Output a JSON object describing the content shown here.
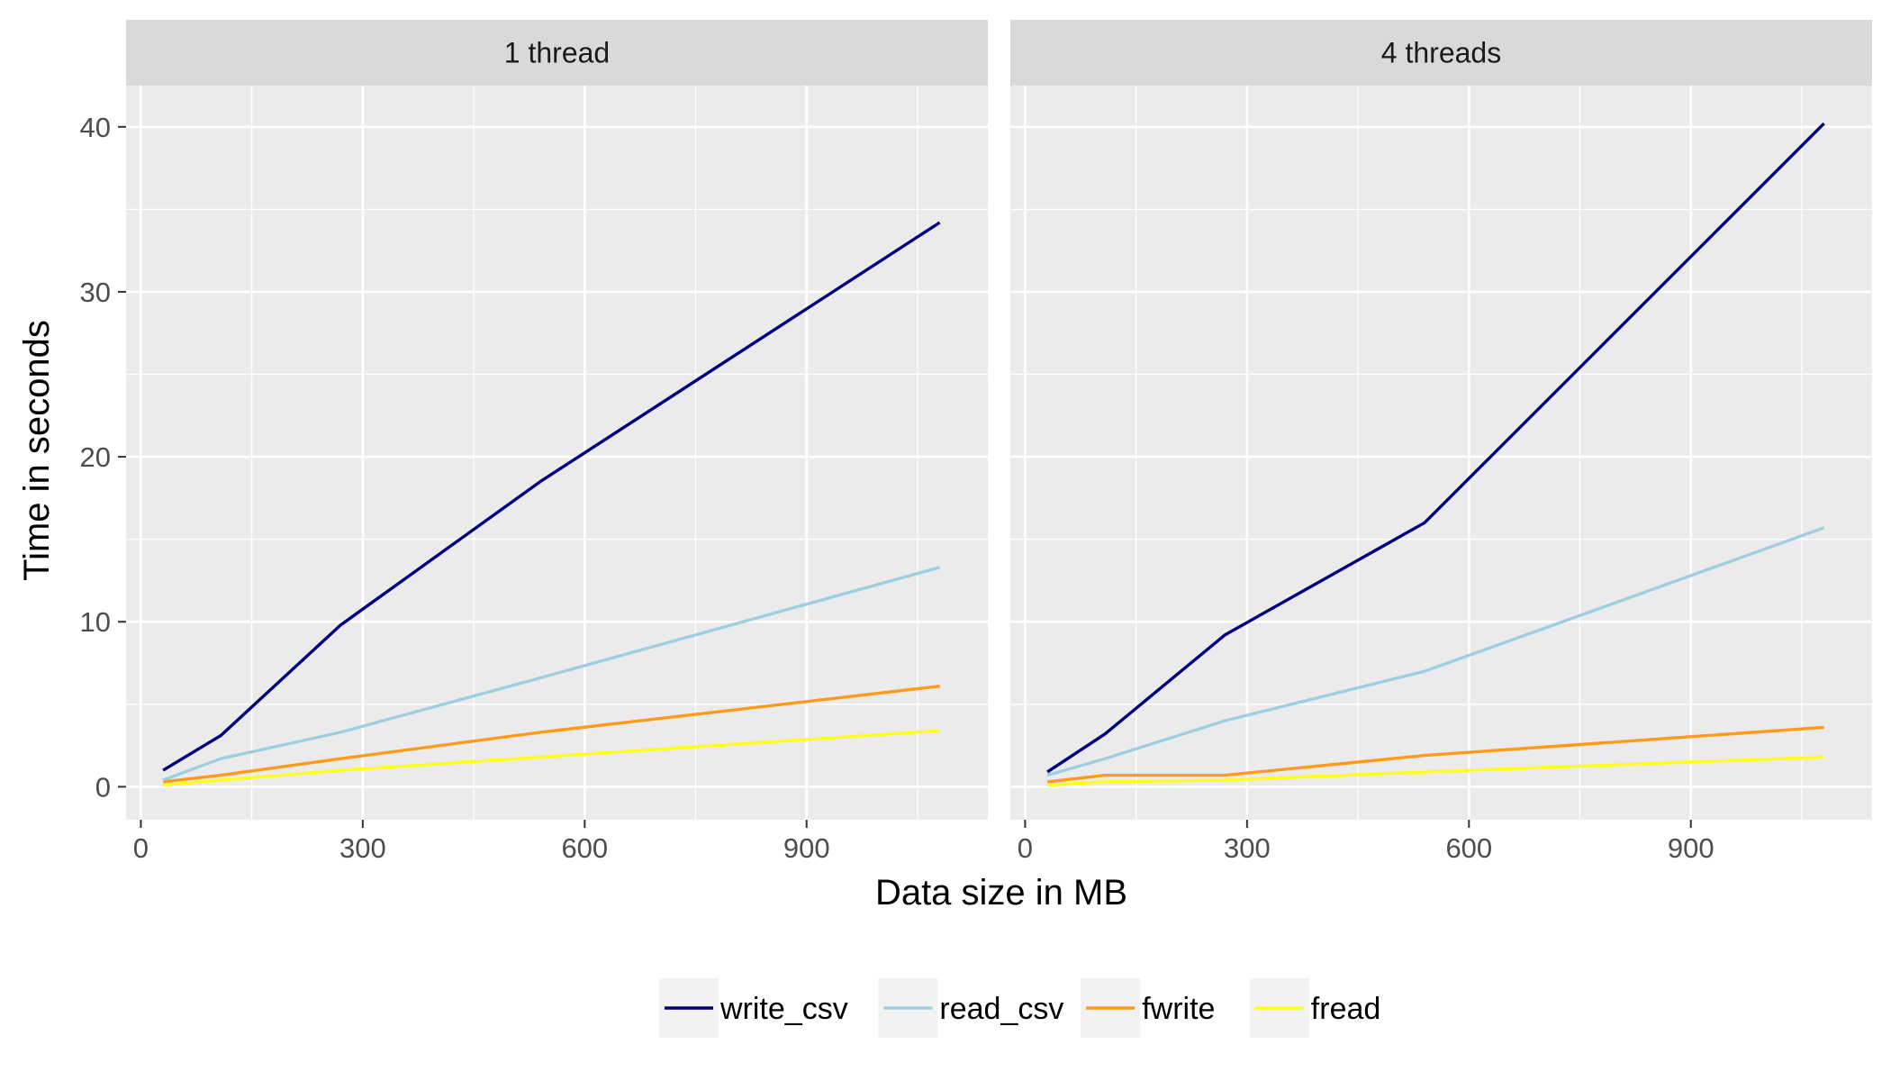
{
  "chart_data": {
    "type": "line",
    "xlabel": "Data size in MB",
    "ylabel": "Time in seconds",
    "xlim": [
      -20,
      1145
    ],
    "ylim": [
      -2,
      42.5
    ],
    "x_ticks": [
      0,
      300,
      600,
      900
    ],
    "x_minor": [
      150,
      450,
      750,
      1050
    ],
    "y_ticks": [
      0,
      10,
      20,
      30,
      40
    ],
    "y_minor": [
      5,
      15,
      25,
      35
    ],
    "grid": true,
    "legend_position": "bottom",
    "panels": [
      {
        "title": "1 thread",
        "x": [
          30,
          108,
          270,
          540,
          1080
        ],
        "series": [
          {
            "name": "write_csv",
            "color": "#000080",
            "values": [
              1.0,
              3.1,
              9.8,
              18.5,
              34.2
            ]
          },
          {
            "name": "read_csv",
            "color": "#9ecfe0",
            "values": [
              0.4,
              1.7,
              3.3,
              6.6,
              13.3
            ]
          },
          {
            "name": "fwrite",
            "color": "#ff9a1a",
            "values": [
              0.3,
              0.7,
              1.7,
              3.3,
              6.1
            ]
          },
          {
            "name": "fread",
            "color": "#ffff1a",
            "values": [
              0.1,
              0.4,
              1.0,
              1.8,
              3.4
            ]
          }
        ]
      },
      {
        "title": "4 threads",
        "x": [
          30,
          108,
          270,
          540,
          1080
        ],
        "series": [
          {
            "name": "write_csv",
            "color": "#000080",
            "values": [
              0.9,
              3.2,
              9.2,
              16.0,
              40.2
            ]
          },
          {
            "name": "read_csv",
            "color": "#9ecfe0",
            "values": [
              0.7,
              1.7,
              4.0,
              7.0,
              15.7
            ]
          },
          {
            "name": "fwrite",
            "color": "#ff9a1a",
            "values": [
              0.3,
              0.7,
              0.7,
              1.9,
              3.6
            ]
          },
          {
            "name": "fread",
            "color": "#ffff1a",
            "values": [
              0.1,
              0.3,
              0.4,
              0.9,
              1.8
            ]
          }
        ]
      }
    ]
  }
}
